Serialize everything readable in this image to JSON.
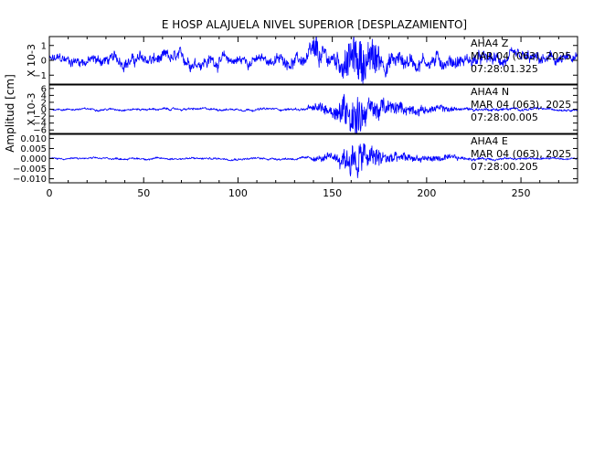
{
  "chart_data": {
    "type": "line",
    "title": "E HOSP ALAJUELA NIVEL SUPERIOR [DESPLAZAMIENTO]",
    "ylabel": "Amplitud [cm]",
    "xlim": [
      0,
      280
    ],
    "x_ticks": [
      "0",
      "50",
      "100",
      "150",
      "200",
      "250"
    ],
    "trace_color": "#0000ff",
    "grid": false,
    "panels": [
      {
        "station": "AHA4",
        "component": "Z",
        "date": "MAR 04 (063), 2025",
        "time": "07:28:01.325",
        "scale": "X 10-3",
        "ylim": [
          -1.6,
          1.6
        ],
        "y_ticks": [
          {
            "value": 1,
            "label": "1"
          },
          {
            "value": 0,
            "label": "0"
          },
          {
            "value": -1,
            "label": "−1"
          }
        ],
        "envelope": [
          {
            "x": 0,
            "amp": 0.5
          },
          {
            "x": 20,
            "amp": 0.5
          },
          {
            "x": 50,
            "amp": 0.6
          },
          {
            "x": 85,
            "amp": 0.6
          },
          {
            "x": 110,
            "amp": 0.45
          },
          {
            "x": 135,
            "amp": 0.6
          },
          {
            "x": 140,
            "amp": 1.1
          },
          {
            "x": 150,
            "amp": 0.8
          },
          {
            "x": 160,
            "amp": 1.2
          },
          {
            "x": 165,
            "amp": 1.5
          },
          {
            "x": 175,
            "amp": 1.0
          },
          {
            "x": 200,
            "amp": 0.7
          },
          {
            "x": 230,
            "amp": 0.6
          },
          {
            "x": 280,
            "amp": 0.5
          }
        ]
      },
      {
        "station": "AHA4",
        "component": "N",
        "date": "MAR 04 (063), 2025",
        "time": "07:28:00.005",
        "scale": "X 10-3",
        "ylim": [
          -7,
          7
        ],
        "y_ticks": [
          {
            "value": 6,
            "label": "6"
          },
          {
            "value": 4,
            "label": "4"
          },
          {
            "value": 2,
            "label": "2"
          },
          {
            "value": 0,
            "label": "0"
          },
          {
            "value": -2,
            "label": "−2"
          },
          {
            "value": -4,
            "label": "−4"
          },
          {
            "value": -6,
            "label": "−6"
          }
        ],
        "envelope": [
          {
            "x": 0,
            "amp": 0.4
          },
          {
            "x": 135,
            "amp": 0.5
          },
          {
            "x": 140,
            "amp": 1.2
          },
          {
            "x": 150,
            "amp": 2.0
          },
          {
            "x": 158,
            "amp": 5.0
          },
          {
            "x": 162,
            "amp": 6.5
          },
          {
            "x": 168,
            "amp": 4.0
          },
          {
            "x": 180,
            "amp": 2.0
          },
          {
            "x": 200,
            "amp": 1.0
          },
          {
            "x": 230,
            "amp": 0.6
          },
          {
            "x": 280,
            "amp": 0.4
          }
        ]
      },
      {
        "station": "AHA4",
        "component": "E",
        "date": "MAR 04 (063), 2025",
        "time": "07:28:00.205",
        "scale": "",
        "ylim": [
          -0.012,
          0.012
        ],
        "y_ticks": [
          {
            "value": 0.01,
            "label": "0.010"
          },
          {
            "value": 0.005,
            "label": "0.005"
          },
          {
            "value": 0,
            "label": "0.000"
          },
          {
            "value": -0.005,
            "label": "−0.005"
          },
          {
            "value": -0.01,
            "label": "−0.010"
          }
        ],
        "envelope": [
          {
            "x": 0,
            "amp": 0.0006
          },
          {
            "x": 135,
            "amp": 0.0008
          },
          {
            "x": 150,
            "amp": 0.002
          },
          {
            "x": 158,
            "amp": 0.006
          },
          {
            "x": 162,
            "amp": 0.0105
          },
          {
            "x": 168,
            "amp": 0.006
          },
          {
            "x": 180,
            "amp": 0.003
          },
          {
            "x": 200,
            "amp": 0.0015
          },
          {
            "x": 240,
            "amp": 0.0008
          },
          {
            "x": 280,
            "amp": 0.0006
          }
        ]
      }
    ]
  }
}
